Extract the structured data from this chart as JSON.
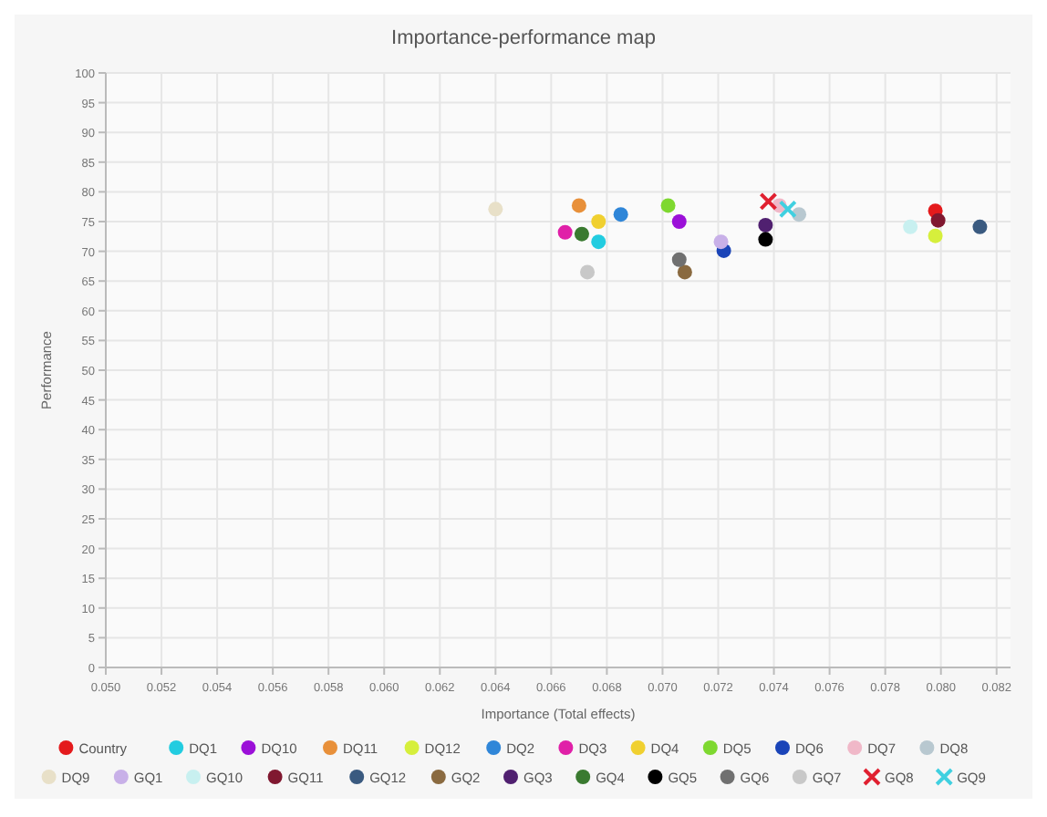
{
  "chart_data": {
    "type": "scatter",
    "title": "Importance-performance map",
    "xlabel": "Importance (Total effects)",
    "ylabel": "Performance",
    "xlim": [
      0.05,
      0.0825
    ],
    "ylim": [
      0,
      100
    ],
    "xticks": [
      {
        "value": 0.05,
        "label": "0.050"
      },
      {
        "value": 0.052,
        "label": "0.052"
      },
      {
        "value": 0.054,
        "label": "0.054"
      },
      {
        "value": 0.056,
        "label": "0.056"
      },
      {
        "value": 0.058,
        "label": "0.058"
      },
      {
        "value": 0.06,
        "label": "0.060"
      },
      {
        "value": 0.062,
        "label": "0.062"
      },
      {
        "value": 0.064,
        "label": "0.064"
      },
      {
        "value": 0.066,
        "label": "0.066"
      },
      {
        "value": 0.068,
        "label": "0.068"
      },
      {
        "value": 0.07,
        "label": "0.070"
      },
      {
        "value": 0.072,
        "label": "0.072"
      },
      {
        "value": 0.074,
        "label": "0.074"
      },
      {
        "value": 0.076,
        "label": "0.076"
      },
      {
        "value": 0.078,
        "label": "0.078"
      },
      {
        "value": 0.08,
        "label": "0.080"
      },
      {
        "value": 0.082,
        "label": "0.082"
      }
    ],
    "yticks": [
      0,
      5,
      10,
      15,
      20,
      25,
      30,
      35,
      40,
      45,
      50,
      55,
      60,
      65,
      70,
      75,
      80,
      85,
      90,
      95,
      100
    ],
    "grid": true,
    "legend": "bottom",
    "marker": "circle",
    "series": [
      {
        "name": "Country",
        "color": "#e41a1c",
        "x": [
          0.0798
        ],
        "values": [
          76.8
        ]
      },
      {
        "name": "DQ1",
        "color": "#22cce0",
        "x": [
          0.0677
        ],
        "values": [
          71.6
        ]
      },
      {
        "name": "DQ10",
        "color": "#9b10d8",
        "x": [
          0.0706
        ],
        "values": [
          75
        ]
      },
      {
        "name": "DQ11",
        "color": "#e8903a",
        "x": [
          0.067
        ],
        "values": [
          77.7
        ]
      },
      {
        "name": "DQ12",
        "color": "#d6ef3c",
        "x": [
          0.0798
        ],
        "values": [
          72.6
        ]
      },
      {
        "name": "DQ2",
        "color": "#2f86d8",
        "x": [
          0.0685
        ],
        "values": [
          76.2
        ]
      },
      {
        "name": "DQ3",
        "color": "#e020a8",
        "x": [
          0.0665
        ],
        "values": [
          73.2
        ]
      },
      {
        "name": "DQ4",
        "color": "#f0d030",
        "x": [
          0.0677
        ],
        "values": [
          75
        ]
      },
      {
        "name": "DQ5",
        "color": "#7ed830",
        "x": [
          0.0702
        ],
        "values": [
          77.7
        ]
      },
      {
        "name": "DQ6",
        "color": "#1a44b8",
        "x": [
          0.0722
        ],
        "values": [
          70.1
        ]
      },
      {
        "name": "DQ7",
        "color": "#f0b8c8",
        "x": [
          0.0742
        ],
        "values": [
          77.7
        ]
      },
      {
        "name": "DQ8",
        "color": "#b8c8d0",
        "x": [
          0.0749
        ],
        "values": [
          76.2
        ]
      },
      {
        "name": "DQ9",
        "color": "#e8e0c8",
        "x": [
          0.064
        ],
        "values": [
          77.1
        ]
      },
      {
        "name": "GQ1",
        "color": "#c8b0e8",
        "x": [
          0.0721
        ],
        "values": [
          71.6
        ]
      },
      {
        "name": "GQ10",
        "color": "#c8f0f0",
        "x": [
          0.0789
        ],
        "values": [
          74.1
        ]
      },
      {
        "name": "GQ11",
        "color": "#801830",
        "x": [
          0.0799
        ],
        "values": [
          75.2
        ]
      },
      {
        "name": "GQ12",
        "color": "#3a5a80",
        "x": [
          0.0814
        ],
        "values": [
          74.1
        ]
      },
      {
        "name": "GQ2",
        "color": "#8a6a40",
        "x": [
          0.0708
        ],
        "values": [
          66.5
        ]
      },
      {
        "name": "GQ3",
        "color": "#502070",
        "x": [
          0.0737
        ],
        "values": [
          74.4
        ]
      },
      {
        "name": "GQ4",
        "color": "#3a7a30",
        "x": [
          0.0671
        ],
        "values": [
          72.9
        ]
      },
      {
        "name": "GQ5",
        "color": "#000000",
        "x": [
          0.0737
        ],
        "values": [
          72
        ]
      },
      {
        "name": "GQ6",
        "color": "#707070",
        "x": [
          0.0706
        ],
        "values": [
          68.6
        ]
      },
      {
        "name": "GQ7",
        "color": "#c8c8c8",
        "x": [
          0.0673
        ],
        "values": [
          66.5
        ]
      },
      {
        "name": "GQ8",
        "color": "#e02030",
        "marker": "cross",
        "x": [
          0.0738
        ],
        "values": [
          78.4
        ]
      },
      {
        "name": "GQ9",
        "color": "#40d0e0",
        "marker": "cross",
        "x": [
          0.0745
        ],
        "values": [
          77.1
        ]
      }
    ]
  }
}
